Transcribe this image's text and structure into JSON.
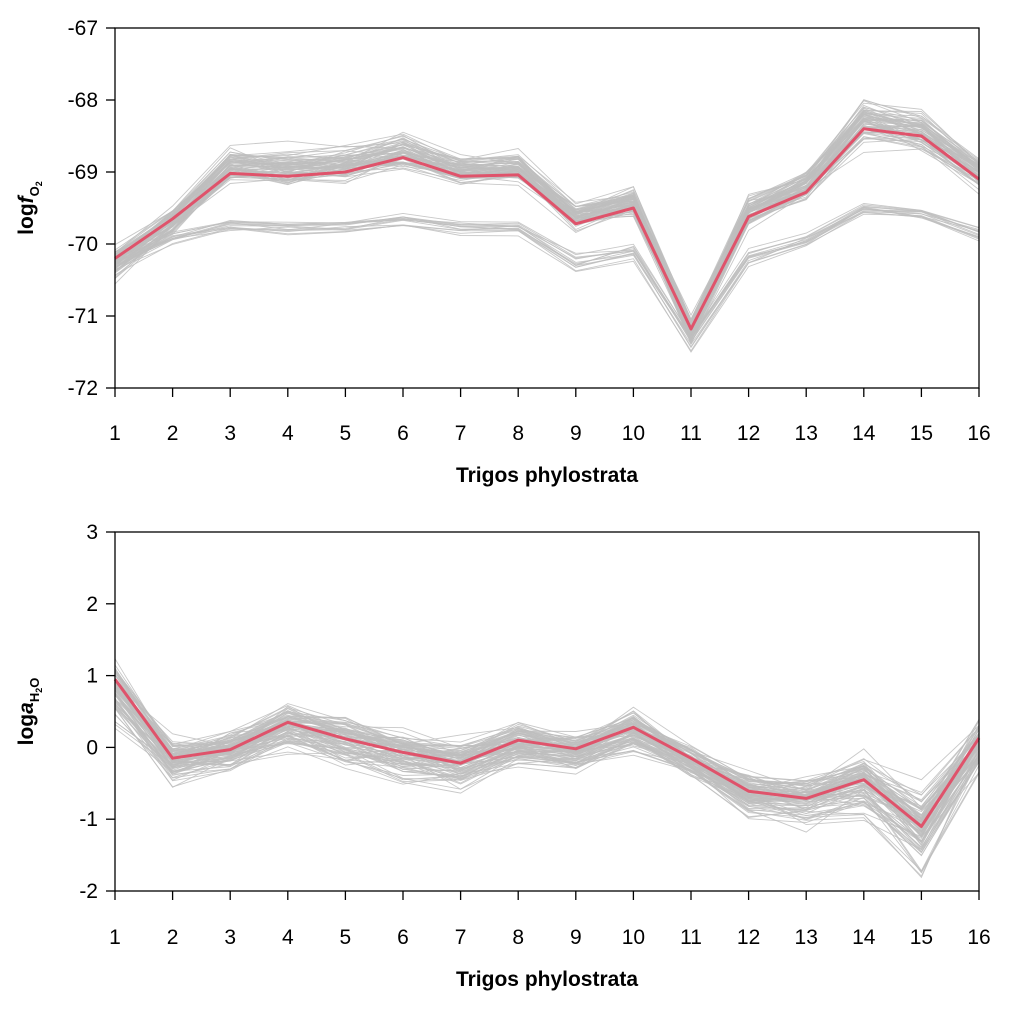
{
  "chart_data": [
    {
      "type": "line",
      "xlabel": "Trigos phylostrata",
      "ylabel": {
        "prefix": "log",
        "variable": "f",
        "subscript": "O",
        "subsubscript": "2"
      },
      "x": [
        1,
        2,
        3,
        4,
        5,
        6,
        7,
        8,
        9,
        10,
        11,
        12,
        13,
        14,
        15,
        16
      ],
      "x_tick_labels": [
        "1",
        "2",
        "3",
        "4",
        "5",
        "6",
        "7",
        "8",
        "9",
        "10",
        "11",
        "12",
        "13",
        "14",
        "15",
        "16"
      ],
      "ylim": [
        -72,
        -67
      ],
      "y_ticks": [
        -72,
        -71,
        -70,
        -69,
        -68,
        -67
      ],
      "y_tick_labels": [
        "-72",
        "-71",
        "-70",
        "-69",
        "-68",
        "-67"
      ],
      "highlight_color": "#df536b",
      "background_color": "#bebebe",
      "highlight_series": [
        -70.2,
        -69.65,
        -69.02,
        -69.06,
        -69.0,
        -68.8,
        -69.06,
        -69.04,
        -69.72,
        -69.5,
        -71.18,
        -69.62,
        -69.28,
        -68.4,
        -68.5,
        -69.1
      ],
      "background_band_main": {
        "center": [
          -70.25,
          -69.68,
          -68.9,
          -68.94,
          -68.88,
          -68.7,
          -68.96,
          -68.94,
          -69.6,
          -69.4,
          -71.18,
          -69.55,
          -69.18,
          -68.3,
          -68.42,
          -69.0
        ],
        "spread": [
          0.25,
          0.22,
          0.28,
          0.28,
          0.28,
          0.3,
          0.26,
          0.26,
          0.22,
          0.22,
          0.2,
          0.24,
          0.24,
          0.35,
          0.32,
          0.28
        ],
        "count": 70
      },
      "background_band_lower": {
        "center": [
          -70.3,
          -69.9,
          -69.74,
          -69.76,
          -69.74,
          -69.66,
          -69.76,
          -69.76,
          -70.25,
          -70.1,
          -71.35,
          -70.18,
          -69.93,
          -69.5,
          -69.56,
          -69.84
        ],
        "spread": [
          0.2,
          0.15,
          0.1,
          0.1,
          0.1,
          0.1,
          0.1,
          0.1,
          0.15,
          0.15,
          0.15,
          0.12,
          0.12,
          0.1,
          0.1,
          0.12
        ],
        "count": 14
      }
    },
    {
      "type": "line",
      "xlabel": "Trigos phylostrata",
      "ylabel": {
        "prefix": "log",
        "variable": "a",
        "subscript": "H",
        "subsubscript": "2",
        "subscript2": "O"
      },
      "x": [
        1,
        2,
        3,
        4,
        5,
        6,
        7,
        8,
        9,
        10,
        11,
        12,
        13,
        14,
        15,
        16
      ],
      "x_tick_labels": [
        "1",
        "2",
        "3",
        "4",
        "5",
        "6",
        "7",
        "8",
        "9",
        "10",
        "11",
        "12",
        "13",
        "14",
        "15",
        "16"
      ],
      "ylim": [
        -2,
        3
      ],
      "y_ticks": [
        -2,
        -1,
        0,
        1,
        2,
        3
      ],
      "y_tick_labels": [
        "-2",
        "-1",
        "0",
        "1",
        "2",
        "3"
      ],
      "highlight_color": "#df536b",
      "background_color": "#bebebe",
      "highlight_series": [
        0.95,
        -0.15,
        -0.03,
        0.35,
        0.12,
        -0.07,
        -0.22,
        0.1,
        -0.02,
        0.28,
        -0.15,
        -0.61,
        -0.71,
        -0.45,
        -1.1,
        0.13
      ],
      "background_band_main": {
        "center": [
          0.8,
          -0.18,
          -0.05,
          0.3,
          0.08,
          -0.1,
          -0.22,
          0.05,
          -0.06,
          0.22,
          -0.2,
          -0.65,
          -0.72,
          -0.5,
          -1.15,
          0.05
        ],
        "spread": [
          0.45,
          0.35,
          0.35,
          0.38,
          0.38,
          0.4,
          0.36,
          0.34,
          0.3,
          0.35,
          0.25,
          0.35,
          0.38,
          0.45,
          0.55,
          0.45
        ],
        "count": 90
      }
    }
  ]
}
